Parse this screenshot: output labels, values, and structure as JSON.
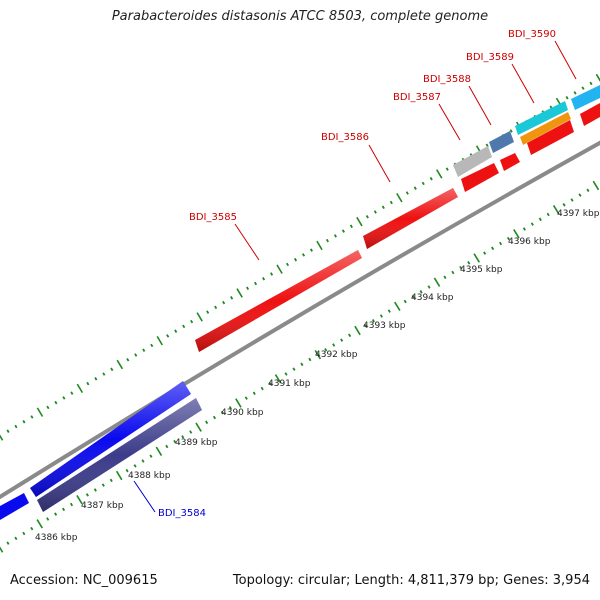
{
  "title": "Parabacteroides distasonis ATCC 8503, complete genome",
  "footer": {
    "accession": "Accession: NC_009615",
    "summary": "Topology: circular; Length: 4,811,379 bp; Genes: 3,954"
  },
  "colors": {
    "backbone": "#8a8a8a",
    "tick": "#1f8a1f",
    "forward_gene": "#ee1111",
    "forward_label": "#cc0000",
    "reverse_gene": "#0a0aee",
    "reverse_gene_2": "#3b3b8a",
    "reverse_label": "#0000cc",
    "gray_gene": "#b8b8b8",
    "steel_gene": "#4f79ad",
    "cyan_gene": "#1ac8d8",
    "orange_gene": "#f0960e",
    "sky_gene": "#22b4f0"
  },
  "scale_labels": [
    "4386 kbp",
    "4387 kbp",
    "4388 kbp",
    "4389 kbp",
    "4390 kbp",
    "4391 kbp",
    "4392 kbp",
    "4393 kbp",
    "4394 kbp",
    "4395 kbp",
    "4396 kbp",
    "4397 kbp"
  ],
  "gene_labels": {
    "BDI_3584": "BDI_3584",
    "BDI_3585": "BDI_3585",
    "BDI_3586": "BDI_3586",
    "BDI_3587": "BDI_3587",
    "BDI_3588": "BDI_3588",
    "BDI_3589": "BDI_3589",
    "BDI_3590": "BDI_3590"
  }
}
